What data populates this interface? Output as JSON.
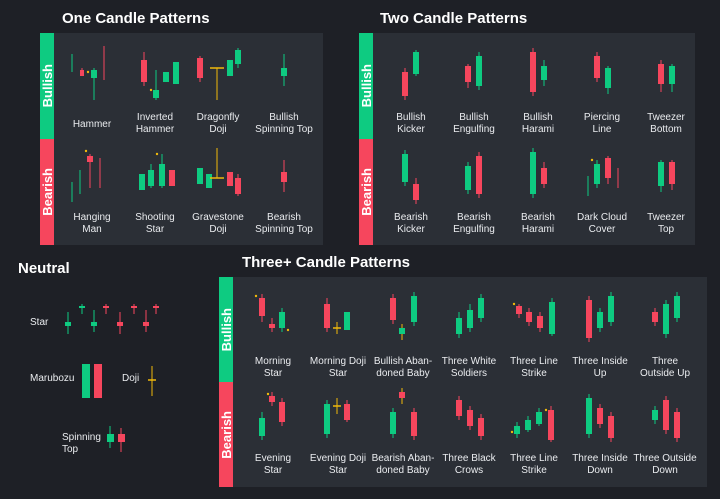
{
  "sections": {
    "one_candle": "One Candle Patterns",
    "two_candle": "Two Candle Patterns",
    "neutral": "Neutral",
    "three_candle": "Three+ Candle Patterns"
  },
  "rows": {
    "bullish": "Bullish",
    "bearish": "Bearish"
  },
  "one_candle": {
    "bullish": [
      "Hammer",
      "Inverted\nHammer",
      "Dragonfly\nDoji",
      "Bullish\nSpinning Top"
    ],
    "bearish": [
      "Hanging\nMan",
      "Shooting\nStar",
      "Gravestone\nDoji",
      "Bearish\nSpinning Top"
    ]
  },
  "two_candle": {
    "bullish": [
      "Bullish\nKicker",
      "Bullish\nEngulfing",
      "Bullish\nHarami",
      "Piercing\nLine",
      "Tweezer\nBottom"
    ],
    "bearish": [
      "Bearish\nKicker",
      "Bearish\nEngulfing",
      "Bearish\nHarami",
      "Dark Cloud\nCover",
      "Tweezer\nTop"
    ]
  },
  "neutral": {
    "star": "Star",
    "marubozu": "Marubozu",
    "doji": "Doji",
    "spinning_top": "Spinning\nTop"
  },
  "three_candle": {
    "bullish": [
      "Morning\nStar",
      "Morning Doji\nStar",
      "Bullish Aban-\ndoned Baby",
      "Three White\nSoldiers",
      "Three Line\nStrike",
      "Three Inside\nUp",
      "Three\nOutside Up"
    ],
    "bearish": [
      "Evening\nStar",
      "Evening Doji\nStar",
      "Bearish Aban-\ndoned Baby",
      "Three Black\nCrows",
      "Three Line\nStrike",
      "Three Inside\nDown",
      "Three Outside\nDown"
    ]
  },
  "colors": {
    "bull": "#0ecb81",
    "bear": "#f6465d",
    "doji": "#f0b90b",
    "bg": "#1e2026",
    "panel": "#2b2f36"
  }
}
